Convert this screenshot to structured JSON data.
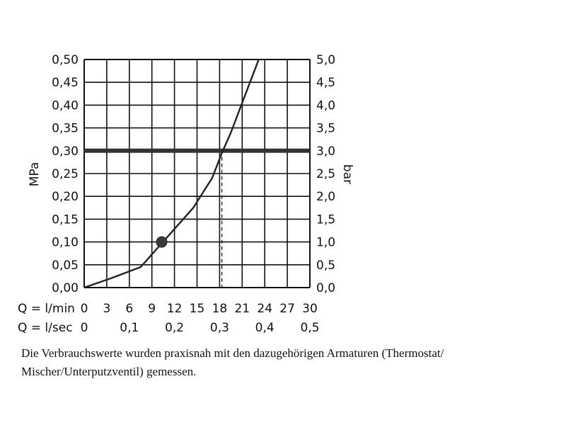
{
  "chart_data": {
    "type": "line",
    "y_left": {
      "label": "MPa",
      "ticks": [
        "0,00",
        "0,05",
        "0,10",
        "0,15",
        "0,20",
        "0,25",
        "0,30",
        "0,35",
        "0,40",
        "0,45",
        "0,50"
      ],
      "range": [
        0,
        0.5
      ]
    },
    "y_right": {
      "label": "bar",
      "ticks": [
        "0,0",
        "0,5",
        "1,0",
        "1,5",
        "2,0",
        "2,5",
        "3,0",
        "3,5",
        "4,0",
        "4,5",
        "5,0"
      ],
      "range": [
        0,
        5.0
      ]
    },
    "x_lmin": {
      "label": "Q = l/min",
      "ticks": [
        "0",
        "3",
        "6",
        "9",
        "12",
        "15",
        "18",
        "21",
        "24",
        "27",
        "30"
      ],
      "range": [
        0,
        30
      ]
    },
    "x_lsec": {
      "label": "Q = l/sec",
      "ticks": [
        "0",
        "0,1",
        "0,2",
        "0,3",
        "0,4",
        "0,5"
      ],
      "values": [
        0,
        0.1,
        0.2,
        0.3,
        0.4,
        0.5
      ]
    },
    "grid": true,
    "series": [
      {
        "x": [
          0,
          3.5,
          7.5,
          11,
          14.5,
          17,
          18.3,
          19.5,
          21,
          22.5,
          23.2
        ],
        "y": [
          0,
          0.02,
          0.045,
          0.11,
          0.175,
          0.24,
          0.295,
          0.34,
          0.405,
          0.47,
          0.5
        ]
      }
    ],
    "reference_line": {
      "y": 0.3
    },
    "reference_drop": {
      "x": 18.3,
      "y": 0.3
    },
    "marker": {
      "x": 10.3,
      "y": 0.1
    }
  },
  "caption": {
    "line1": "Die Verbrauchswerte wurden praxisnah mit den dazugehörigen Armaturen (Thermostat/",
    "line2": "Mischer/Unterputzventil) gemessen."
  },
  "colors": {
    "line": "#222222",
    "grid": "#111111",
    "ref": "#333333"
  }
}
